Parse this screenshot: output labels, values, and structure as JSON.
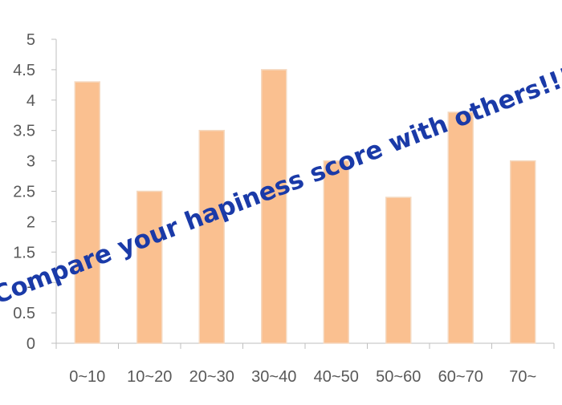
{
  "chart_data": {
    "type": "bar",
    "categories": [
      "0~10",
      "10~20",
      "20~30",
      "30~40",
      "40~50",
      "50~60",
      "60~70",
      "70~"
    ],
    "values": [
      4.3,
      2.5,
      3.5,
      4.5,
      3.0,
      2.4,
      3.8,
      3.0
    ],
    "ylim": [
      0,
      5
    ],
    "yticks": [
      "0",
      "0.5",
      "1",
      "1.5",
      "2",
      "2.5",
      "3",
      "3.5",
      "4",
      "4.5",
      "5"
    ],
    "title": "",
    "xlabel": "",
    "ylabel": "",
    "grid": false,
    "legend": "none",
    "colors": {
      "bar_fill": "#fac090",
      "bar_edge": "#f5d9c0",
      "axis": "#bfbfbf",
      "tick_text": "#595959"
    }
  },
  "overlay": {
    "text": "Compare your hapiness score with others!!!",
    "color": "#1a3aa8",
    "rotation_deg": -21
  }
}
